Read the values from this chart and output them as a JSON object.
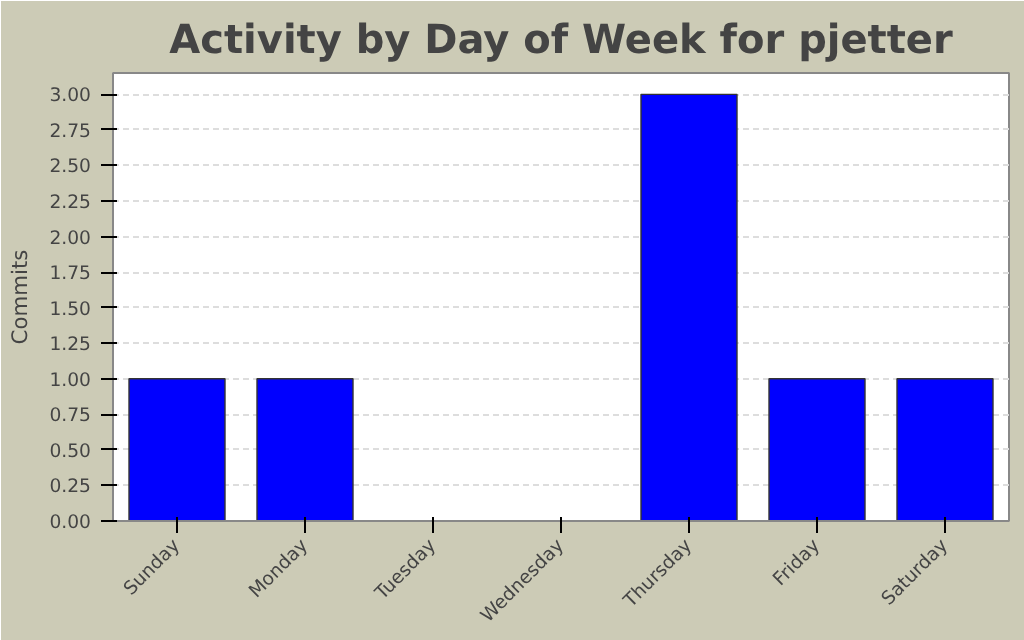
{
  "chart_data": {
    "type": "bar",
    "title": "Activity by Day of Week for pjetter",
    "ylabel": "Commits",
    "categories": [
      "Sunday",
      "Monday",
      "Tuesday",
      "Wednesday",
      "Thursday",
      "Friday",
      "Saturday"
    ],
    "values": [
      1,
      1,
      0,
      0,
      3,
      1,
      1
    ],
    "color": "#0000ff",
    "ylim": [
      0,
      3.15
    ],
    "yticks": [
      {
        "value": 0,
        "label": "0.00"
      },
      {
        "value": 0.25,
        "label": "0.25"
      },
      {
        "value": 0.5,
        "label": "0.50"
      },
      {
        "value": 0.75,
        "label": "0.75"
      },
      {
        "value": 1,
        "label": "1.00"
      },
      {
        "value": 1.25,
        "label": "1.25"
      },
      {
        "value": 1.5,
        "label": "1.50"
      },
      {
        "value": 1.75,
        "label": "1.75"
      },
      {
        "value": 2,
        "label": "2.00"
      },
      {
        "value": 2.25,
        "label": "2.25"
      },
      {
        "value": 2.5,
        "label": "2.50"
      },
      {
        "value": 2.75,
        "label": "2.75"
      },
      {
        "value": 3,
        "label": "3.00"
      }
    ],
    "grid": "y"
  }
}
